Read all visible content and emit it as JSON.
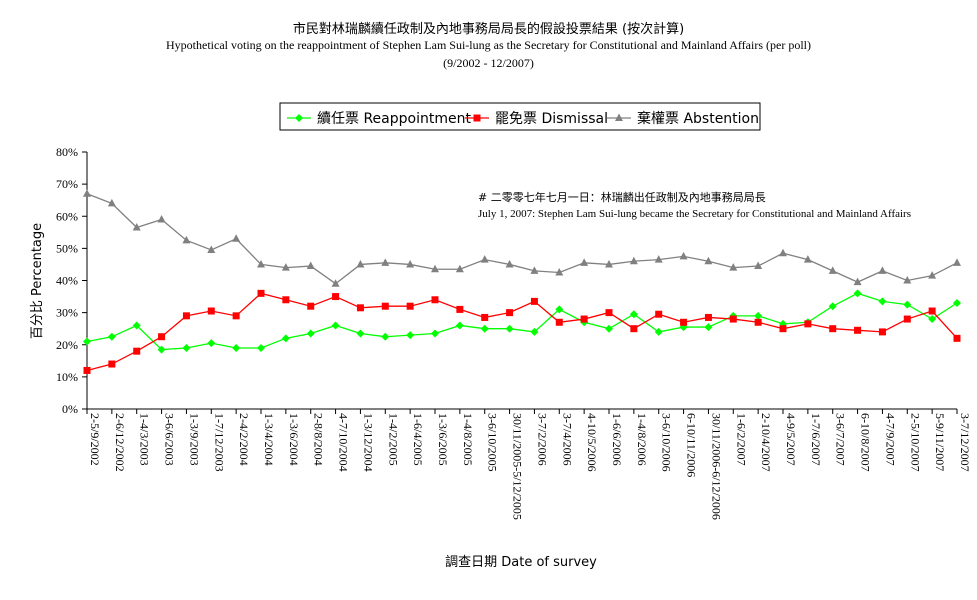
{
  "title_zh": "市民對林瑞麟續任政制及內地事務局局長的假設投票結果 (按次計算)",
  "title_en": "Hypothetical voting on the reappointment of Stephen Lam Sui-lung as the Secretary for Constitutional and Mainland Affairs (per poll)",
  "title_range": "(9/2002 - 12/2007)",
  "annotation_zh": "# 二零零七年七月一日：林瑞麟出任政制及內地事務局局長",
  "annotation_en": "July 1, 2007: Stephen Lam Sui-lung became the Secretary for Constitutional and Mainland Affairs",
  "chart_data": {
    "type": "line",
    "xlabel": "調查日期 Date of survey",
    "ylabel": "百分比 Percentage",
    "ylim": [
      0,
      80
    ],
    "yticks": [
      "0%",
      "10%",
      "20%",
      "30%",
      "40%",
      "50%",
      "60%",
      "70%",
      "80%"
    ],
    "legend_position": "top-center",
    "categories": [
      "2-5/9/2002",
      "2-6/12/2002",
      "1-4/3/2003",
      "3-6/6/2003",
      "1-3/9/2003",
      "1-7/12/2003",
      "2-4/2/2004",
      "1-3/4/2004",
      "1-3/6/2004",
      "2-8/8/2004",
      "4-7/10/2004",
      "1-3/12/2004",
      "1-4/2/2005",
      "1-6/4/2005",
      "1-3/6/2005",
      "1-4/8/2005",
      "3-6/10/2005",
      "30/11/2005-5/12/2005",
      "3-7/2/2006",
      "3-7/4/2006",
      "4-10/5/2006",
      "1-6/6/2006",
      "1-4/8/2006",
      "3-6/10/2006",
      "6-10/11/2006",
      "30/11/2006-6/12/2006",
      "1-6/2/2007",
      "2-10/4/2007",
      "4-9/5/2007",
      "1-7/6/2007",
      "3-6/7/2007",
      "6-10/8/2007",
      "4-7/9/2007",
      "2-5/10/2007",
      "5-9/11/2007",
      "3-7/12/2007"
    ],
    "series": [
      {
        "name": "續任票  Reappointment",
        "color": "#00ff00",
        "marker": "diamond",
        "values": [
          21,
          22.5,
          26,
          18.5,
          19,
          20.5,
          19,
          19,
          22,
          23.5,
          26,
          23.5,
          22.5,
          23,
          23.5,
          26,
          25,
          25,
          24,
          31,
          27,
          25,
          29.5,
          24,
          25.5,
          25.5,
          29,
          29,
          26.5,
          27,
          32,
          36,
          33.5,
          32.5,
          28,
          33
        ]
      },
      {
        "name": "罷免票  Dismissal",
        "color": "#ff0000",
        "marker": "square",
        "values": [
          12,
          14,
          18,
          22.5,
          29,
          30.5,
          29,
          36,
          34,
          32,
          35,
          31.5,
          32,
          32,
          34,
          31,
          28.5,
          30,
          33.5,
          27,
          28,
          30,
          25,
          29.5,
          27,
          28.5,
          28,
          27,
          25,
          26.5,
          25,
          24.5,
          24,
          28,
          30.5,
          22
        ]
      },
      {
        "name": "棄權票  Abstention",
        "color": "#808080",
        "marker": "triangle",
        "values": [
          67,
          64,
          56.5,
          59,
          52.5,
          49.5,
          53,
          45,
          44,
          44.5,
          39,
          45,
          45.5,
          45,
          43.5,
          43.5,
          46.5,
          45,
          43,
          42.5,
          45.5,
          45,
          46,
          46.5,
          47.5,
          46,
          44,
          44.5,
          48.5,
          46.5,
          43,
          39.5,
          43,
          40,
          41.5,
          45.5
        ]
      }
    ]
  }
}
